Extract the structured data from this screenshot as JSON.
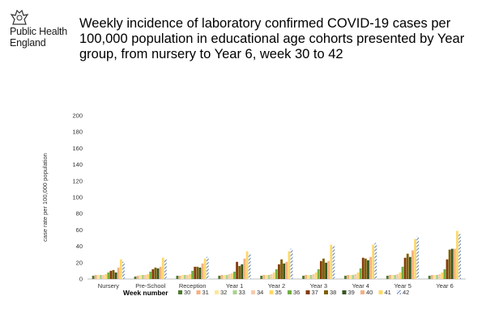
{
  "org": {
    "line1": "Public Health",
    "line2": "England"
  },
  "title": "Weekly incidence of laboratory confirmed COVID-19 cases per 100,000 population in educational age cohorts presented by Year group, from nursery to Year 6, week 30 to 42",
  "chart_data": {
    "type": "bar",
    "ylabel": "case rate per 100,000 population",
    "legend_title": "Week number",
    "legend_position": "bottom",
    "ylim": [
      0,
      200
    ],
    "yticks": [
      0,
      20,
      40,
      60,
      80,
      100,
      120,
      140,
      160,
      180,
      200
    ],
    "categories": [
      "Nursery",
      "Pre-School",
      "Reception",
      "Year 1",
      "Year 2",
      "Year 3",
      "Year 4",
      "Year 5",
      "Year 6"
    ],
    "series": [
      {
        "name": "30",
        "color": "#4e7a2d",
        "values": [
          4,
          3,
          4,
          4,
          4,
          4,
          4,
          4,
          4
        ]
      },
      {
        "name": "31",
        "color": "#f4b183",
        "values": [
          5,
          4,
          4,
          5,
          5,
          5,
          5,
          5,
          5
        ]
      },
      {
        "name": "32",
        "color": "#ffe699",
        "values": [
          5,
          5,
          5,
          5,
          5,
          5,
          5,
          5,
          5
        ]
      },
      {
        "name": "33",
        "color": "#a9d18e",
        "values": [
          5,
          5,
          5,
          5,
          5,
          5,
          5,
          5,
          5
        ]
      },
      {
        "name": "34",
        "color": "#f8cbad",
        "values": [
          5,
          5,
          5,
          6,
          6,
          6,
          6,
          6,
          6
        ]
      },
      {
        "name": "35",
        "color": "#ffd966",
        "values": [
          6,
          6,
          6,
          7,
          8,
          8,
          8,
          8,
          8
        ]
      },
      {
        "name": "36",
        "color": "#70ad47",
        "values": [
          8,
          9,
          10,
          9,
          12,
          12,
          13,
          15,
          12
        ]
      },
      {
        "name": "37",
        "color": "#843c0c",
        "values": [
          10,
          12,
          15,
          21,
          18,
          22,
          26,
          26,
          24
        ]
      },
      {
        "name": "38",
        "color": "#7f6000",
        "values": [
          11,
          14,
          15,
          16,
          24,
          25,
          25,
          31,
          36
        ]
      },
      {
        "name": "39",
        "color": "#375623",
        "values": [
          8,
          13,
          14,
          18,
          19,
          20,
          23,
          27,
          37
        ]
      },
      {
        "name": "40",
        "color": "#f4b183",
        "values": [
          14,
          15,
          19,
          25,
          21,
          22,
          27,
          35,
          37
        ]
      },
      {
        "name": "41",
        "color": "#ffd966",
        "values": [
          24,
          26,
          25,
          34,
          34,
          42,
          42,
          49,
          59
        ]
      },
      {
        "name": "42",
        "color": "#5b7fc4",
        "hatched": true,
        "values": [
          21,
          24,
          27,
          31,
          37,
          40,
          44,
          52,
          55
        ]
      }
    ]
  }
}
